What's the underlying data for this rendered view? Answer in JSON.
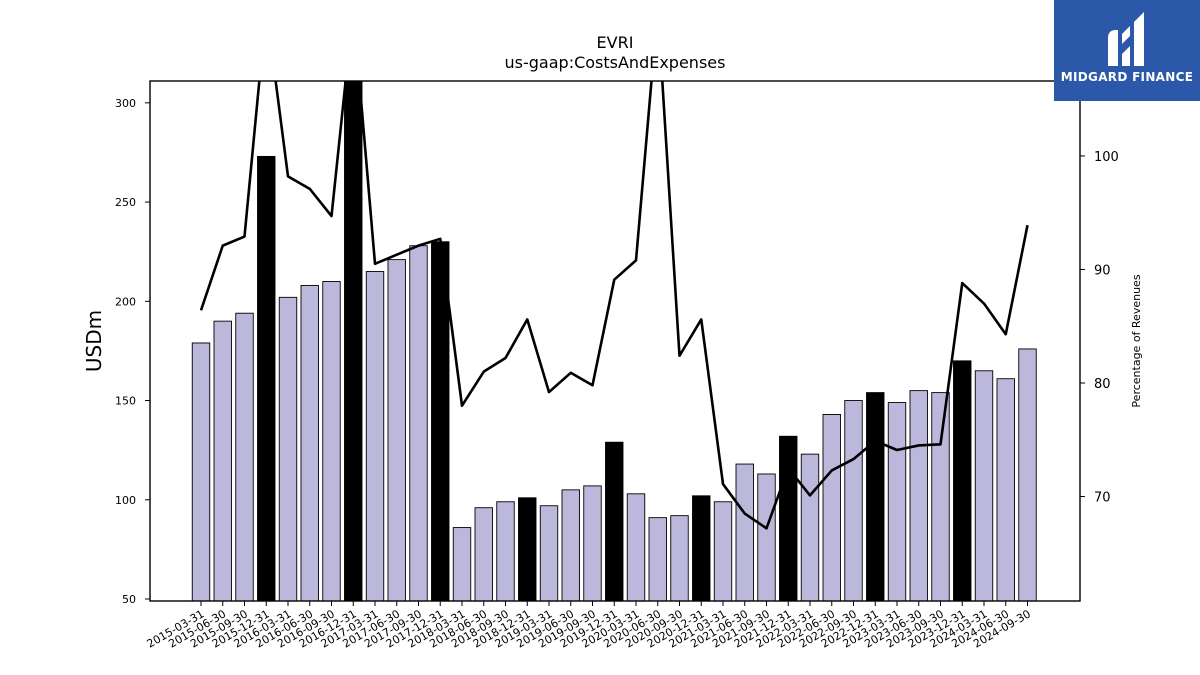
{
  "chart_data": {
    "type": "bar",
    "title": "EVRI",
    "subtitle": "us-gaap:CostsAndExpenses",
    "ylabel": "USDm",
    "y2label": "Percentage of Revenues",
    "ylim": [
      49,
      311
    ],
    "y2lim": [
      60.8,
      106.6
    ],
    "yticks": [
      50,
      100,
      150,
      200,
      250,
      300
    ],
    "y2ticks": [
      70,
      80,
      90,
      100
    ],
    "categories": [
      "2015-03-31",
      "2015-06-30",
      "2015-09-30",
      "2015-12-31",
      "2016-03-31",
      "2016-06-30",
      "2016-09-30",
      "2016-12-31",
      "2017-03-31",
      "2017-06-30",
      "2017-09-30",
      "2017-12-31",
      "2018-03-31",
      "2018-06-30",
      "2018-09-30",
      "2018-12-31",
      "2019-03-31",
      "2019-06-30",
      "2019-09-30",
      "2019-12-31",
      "2020-03-31",
      "2020-06-30",
      "2020-09-30",
      "2020-12-31",
      "2021-03-31",
      "2021-06-30",
      "2021-09-30",
      "2021-12-31",
      "2022-03-31",
      "2022-06-30",
      "2022-09-30",
      "2022-12-31",
      "2023-03-31",
      "2023-06-30",
      "2023-09-30",
      "2023-12-31",
      "2024-03-31",
      "2024-06-30",
      "2024-09-30"
    ],
    "series": [
      {
        "type": "bar",
        "values": [
          179,
          190,
          194,
          273,
          202,
          208,
          210,
          318,
          215,
          221,
          228,
          230,
          86,
          96,
          99,
          101,
          97,
          105,
          107,
          129,
          103,
          91,
          92,
          102,
          99,
          118,
          113,
          132,
          123,
          143,
          150,
          154,
          149,
          155,
          154,
          170,
          165,
          161,
          176
        ],
        "highlighted": [
          false,
          false,
          false,
          true,
          false,
          false,
          false,
          true,
          false,
          false,
          false,
          true,
          false,
          false,
          false,
          true,
          false,
          false,
          false,
          true,
          false,
          false,
          false,
          true,
          false,
          false,
          false,
          true,
          false,
          false,
          false,
          true,
          false,
          false,
          false,
          true,
          false,
          false,
          false
        ]
      },
      {
        "type": "line",
        "axis": "right",
        "values": [
          86.4,
          92.1,
          92.9,
          113.0,
          98.2,
          97.1,
          94.7,
          113.0,
          90.5,
          91.3,
          92.1,
          92.7,
          78.0,
          81.0,
          82.2,
          85.6,
          79.2,
          80.9,
          79.8,
          89.1,
          90.8,
          113.0,
          82.4,
          85.6,
          71.1,
          68.5,
          67.2,
          72.5,
          70.1,
          72.3,
          73.3,
          74.9,
          74.1,
          74.5,
          74.6,
          88.8,
          87.0,
          84.3,
          93.9
        ]
      }
    ],
    "colors": {
      "bar": "#bcb8dc",
      "highlight": "#000000",
      "line": "#000000"
    },
    "grid": false,
    "legend": "none"
  },
  "logo": {
    "text": "MIDGARD FINANCE",
    "bg": "#2b58a8"
  }
}
